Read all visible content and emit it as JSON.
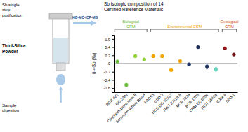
{
  "chart_data": {
    "type": "scatter",
    "title": "Sb isotopic composition of 14\nCertified Reference Materials",
    "y_label": "δ¹²³Sb (‰)",
    "categories": [
      "BCR 482",
      "GC-23At",
      "Clincheck Urine level II",
      "Seronorm Whole Blood",
      "PACS3",
      "GSD 3",
      "NCS-DC-70317",
      "NIST 2711a A",
      "BCR 723a",
      "BCR 1708",
      "CRM EC 680s",
      "NIST 1640a",
      "GXR 4",
      "SbO-1"
    ],
    "values": [
      0.05,
      -0.52,
      0.18,
      0.1,
      0.18,
      0.18,
      -0.16,
      0.06,
      -0.02,
      0.4,
      -0.07,
      -0.14,
      0.37,
      0.22
    ],
    "colors": [
      "#6abf3a",
      "#6abf3a",
      "#8ecf3a",
      "#8ecf3a",
      "#f0a500",
      "#f0a500",
      "#f0a500",
      "#f0a500",
      "#1b2f5e",
      "#1b2f5e",
      "#1b2f5e",
      "#6fd4c0",
      "#8b1a1a",
      "#6b1010"
    ],
    "errors": [
      null,
      null,
      null,
      null,
      null,
      null,
      null,
      null,
      null,
      null,
      0.06,
      0.05,
      null,
      null
    ],
    "ylim": [
      -0.7,
      0.7
    ],
    "yticks": [
      -0.6,
      -0.4,
      -0.2,
      0,
      0.2,
      0.4,
      0.6
    ],
    "grid": false,
    "groups": [
      {
        "label": "Biological\nCRM",
        "color": "#6abf3a",
        "members": [
          "BCR 482",
          "GC-23At",
          "Clincheck Urine level II",
          "Seronorm Whole Blood"
        ]
      },
      {
        "label": "Environmental CRM",
        "color": "#f0a500",
        "members": [
          "PACS3",
          "GSD 3",
          "NCS-DC-70317",
          "NIST 2711a A",
          "BCR 723a",
          "BCR 1708",
          "CRM EC 680s",
          "NIST 1640a"
        ]
      },
      {
        "label": "Geological\nCRM",
        "color": "#d0521a",
        "members": [
          "GXR 4",
          "SbO-1"
        ]
      }
    ],
    "annotations": [
      "Sb single\nstep\npurification",
      "Thiol-Silica\nPowder",
      "Sample\ndigestion",
      "HG-MC-ICP-MS"
    ]
  }
}
